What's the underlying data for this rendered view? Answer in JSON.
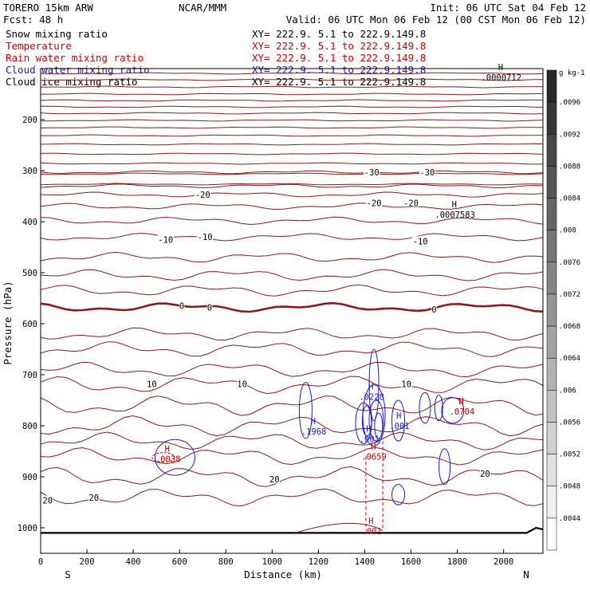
{
  "header": {
    "model": "TORERO  15km ARW",
    "org": "NCAR/MMM",
    "init": "Init: 06 UTC Sat 04 Feb 12",
    "fcst": "Fcst:   48 h",
    "valid": "Valid: 06 UTC Mon 06 Feb 12 (00 CST Mon 06 Feb 12)"
  },
  "fields": [
    {
      "name": "Snow mixing ratio",
      "xy": "XY= 222.9.  5.1 to 222.9.149.8",
      "color": "#000000"
    },
    {
      "name": "Temperature",
      "xy": "XY= 222.9.  5.1 to 222.9.149.8",
      "color": "#cc0000"
    },
    {
      "name": "Rain water mixing ratio",
      "xy": "XY= 222.9.  5.1 to 222.9.149.8",
      "color": "#cc0000"
    },
    {
      "name": "Cloud water mixing ratio",
      "xy": "XY= 222.9.  5.1 to 222.9.149.8",
      "color": "#1a1acc"
    },
    {
      "name": "Cloud ice mixing ratio",
      "xy": "XY= 222.9.  5.1 to 222.9.149.8",
      "color": "#000000"
    }
  ],
  "colors": {
    "temperature": "#8b1a1a",
    "rain": "#cc0000",
    "cloud_water": "#1a1acc",
    "ground": "#000000"
  },
  "chart_data": {
    "type": "line",
    "xlabel": "Distance (km)",
    "ylabel": "Pressure (hPa)",
    "xlim": [
      0,
      2170
    ],
    "ylim": [
      1050,
      100
    ],
    "x_ticks": [
      0,
      200,
      400,
      600,
      800,
      1000,
      1200,
      1400,
      1600,
      1800,
      2000
    ],
    "y_ticks": [
      200,
      300,
      400,
      500,
      600,
      700,
      800,
      900,
      1000
    ],
    "left_end_label": "S",
    "right_end_label": "N",
    "colorbar": {
      "unit": "g kg-1",
      "labels": [
        ".0096",
        ".0092",
        ".0088",
        ".0084",
        ".008",
        ".0076",
        ".0072",
        ".0068",
        ".0064",
        ".006",
        ".0056",
        ".0052",
        ".0048",
        ".0044"
      ]
    },
    "temperature_labels": [
      {
        "text": "-30",
        "x": 1430,
        "p": 303
      },
      {
        "text": "-30",
        "x": 1670,
        "p": 303
      },
      {
        "text": "-20",
        "x": 700,
        "p": 347
      },
      {
        "text": "-20",
        "x": 1440,
        "p": 363
      },
      {
        "text": "-20",
        "x": 1600,
        "p": 363
      },
      {
        "text": "-10",
        "x": 540,
        "p": 435
      },
      {
        "text": "-10",
        "x": 710,
        "p": 430
      },
      {
        "text": "-10",
        "x": 1640,
        "p": 438
      },
      {
        "text": "0",
        "x": 610,
        "p": 565
      },
      {
        "text": "0",
        "x": 730,
        "p": 568
      },
      {
        "text": "0",
        "x": 1700,
        "p": 572
      },
      {
        "text": "10",
        "x": 480,
        "p": 718
      },
      {
        "text": "10",
        "x": 870,
        "p": 718
      },
      {
        "text": "10",
        "x": 1580,
        "p": 718
      },
      {
        "text": "20",
        "x": 1010,
        "p": 905
      },
      {
        "text": "20",
        "x": 1920,
        "p": 894
      },
      {
        "text": "20",
        "x": 230,
        "p": 941
      },
      {
        "text": "20",
        "x": 30,
        "p": 946
      }
    ],
    "maxima_labels": [
      {
        "text": ".0000712",
        "x": 1990,
        "p": 117
      },
      {
        "text": ".0007583",
        "x": 1790,
        "p": 386
      },
      {
        "text": ".0228",
        "x": 1430,
        "p": 743
      },
      {
        "text": ".1968",
        "x": 1180,
        "p": 811
      },
      {
        "text": ".001",
        "x": 1550,
        "p": 800
      },
      {
        "text": ".001",
        "x": 1420,
        "p": 826
      },
      {
        "text": ".0659",
        "x": 1440,
        "p": 860
      },
      {
        "text": ".0704",
        "x": 1820,
        "p": 772
      },
      {
        "text": ".0038",
        "x": 550,
        "p": 865
      },
      {
        "text": ".001",
        "x": 1430,
        "p": 1006
      }
    ]
  }
}
